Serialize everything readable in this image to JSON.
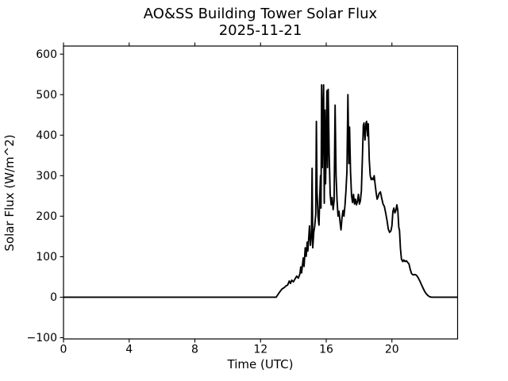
{
  "chart_data": {
    "type": "line",
    "title": "AO&SS Building Tower Solar Flux",
    "subtitle": "2025-11-21",
    "xlabel": "Time (UTC)",
    "ylabel": "Solar Flux (W/m^2)",
    "xlim": [
      0,
      24
    ],
    "ylim": [
      -103,
      620
    ],
    "grid": false,
    "legend": null,
    "line_color": "#000000",
    "background_color": "#ffffff",
    "xticks": {
      "values": [
        0,
        4,
        8,
        12,
        16,
        20
      ],
      "labels": [
        "0",
        "4",
        "8",
        "12",
        "16",
        "20"
      ]
    },
    "yticks": {
      "values": [
        -100,
        0,
        100,
        200,
        300,
        400,
        500,
        600
      ],
      "labels": [
        "−100",
        "0",
        "100",
        "200",
        "300",
        "400",
        "500",
        "600"
      ]
    },
    "series": [
      {
        "name": "solar-flux",
        "points": [
          [
            0.0,
            0
          ],
          [
            12.95,
            0
          ],
          [
            13.05,
            6
          ],
          [
            13.15,
            12
          ],
          [
            13.3,
            20
          ],
          [
            13.45,
            24
          ],
          [
            13.55,
            28
          ],
          [
            13.65,
            30
          ],
          [
            13.75,
            40
          ],
          [
            13.82,
            34
          ],
          [
            13.9,
            42
          ],
          [
            14.0,
            38
          ],
          [
            14.1,
            45
          ],
          [
            14.2,
            52
          ],
          [
            14.3,
            47
          ],
          [
            14.4,
            58
          ],
          [
            14.45,
            75
          ],
          [
            14.5,
            60
          ],
          [
            14.6,
            97
          ],
          [
            14.65,
            76
          ],
          [
            14.72,
            122
          ],
          [
            14.78,
            101
          ],
          [
            14.84,
            136
          ],
          [
            14.88,
            114
          ],
          [
            14.94,
            150
          ],
          [
            14.98,
            176
          ],
          [
            15.04,
            128
          ],
          [
            15.1,
            152
          ],
          [
            15.14,
            318
          ],
          [
            15.18,
            122
          ],
          [
            15.24,
            160
          ],
          [
            15.3,
            176
          ],
          [
            15.36,
            205
          ],
          [
            15.4,
            434
          ],
          [
            15.44,
            262
          ],
          [
            15.5,
            200
          ],
          [
            15.56,
            178
          ],
          [
            15.6,
            242
          ],
          [
            15.65,
            300
          ],
          [
            15.68,
            220
          ],
          [
            15.72,
            524
          ],
          [
            15.76,
            320
          ],
          [
            15.8,
            450
          ],
          [
            15.84,
            524
          ],
          [
            15.88,
            232
          ],
          [
            15.92,
            462
          ],
          [
            15.96,
            280
          ],
          [
            16.0,
            380
          ],
          [
            16.04,
            510
          ],
          [
            16.08,
            320
          ],
          [
            16.12,
            513
          ],
          [
            16.18,
            352
          ],
          [
            16.24,
            255
          ],
          [
            16.3,
            228
          ],
          [
            16.36,
            246
          ],
          [
            16.42,
            216
          ],
          [
            16.48,
            238
          ],
          [
            16.54,
            474
          ],
          [
            16.6,
            300
          ],
          [
            16.66,
            238
          ],
          [
            16.72,
            200
          ],
          [
            16.78,
            212
          ],
          [
            16.84,
            186
          ],
          [
            16.9,
            166
          ],
          [
            16.96,
            196
          ],
          [
            17.02,
            214
          ],
          [
            17.08,
            200
          ],
          [
            17.14,
            226
          ],
          [
            17.2,
            262
          ],
          [
            17.26,
            310
          ],
          [
            17.32,
            500
          ],
          [
            17.38,
            330
          ],
          [
            17.42,
            420
          ],
          [
            17.48,
            310
          ],
          [
            17.54,
            252
          ],
          [
            17.6,
            234
          ],
          [
            17.66,
            254
          ],
          [
            17.72,
            230
          ],
          [
            17.78,
            242
          ],
          [
            17.84,
            228
          ],
          [
            17.9,
            236
          ],
          [
            17.96,
            254
          ],
          [
            18.02,
            230
          ],
          [
            18.08,
            238
          ],
          [
            18.14,
            262
          ],
          [
            18.2,
            340
          ],
          [
            18.26,
            424
          ],
          [
            18.3,
            430
          ],
          [
            18.36,
            388
          ],
          [
            18.42,
            430
          ],
          [
            18.46,
            434
          ],
          [
            18.52,
            398
          ],
          [
            18.56,
            428
          ],
          [
            18.62,
            340
          ],
          [
            18.68,
            300
          ],
          [
            18.74,
            290
          ],
          [
            18.8,
            294
          ],
          [
            18.86,
            290
          ],
          [
            18.92,
            300
          ],
          [
            18.98,
            278
          ],
          [
            19.04,
            258
          ],
          [
            19.1,
            242
          ],
          [
            19.16,
            248
          ],
          [
            19.22,
            256
          ],
          [
            19.3,
            260
          ],
          [
            19.38,
            244
          ],
          [
            19.46,
            230
          ],
          [
            19.54,
            224
          ],
          [
            19.62,
            208
          ],
          [
            19.7,
            190
          ],
          [
            19.78,
            168
          ],
          [
            19.86,
            160
          ],
          [
            19.94,
            164
          ],
          [
            20.0,
            176
          ],
          [
            20.06,
            212
          ],
          [
            20.12,
            220
          ],
          [
            20.18,
            208
          ],
          [
            20.24,
            214
          ],
          [
            20.3,
            228
          ],
          [
            20.36,
            214
          ],
          [
            20.42,
            172
          ],
          [
            20.46,
            166
          ],
          [
            20.52,
            120
          ],
          [
            20.58,
            94
          ],
          [
            20.66,
            88
          ],
          [
            20.72,
            92
          ],
          [
            20.8,
            88
          ],
          [
            20.88,
            90
          ],
          [
            20.96,
            86
          ],
          [
            21.04,
            82
          ],
          [
            21.12,
            68
          ],
          [
            21.2,
            58
          ],
          [
            21.3,
            55
          ],
          [
            21.4,
            56
          ],
          [
            21.5,
            54
          ],
          [
            21.6,
            48
          ],
          [
            21.7,
            40
          ],
          [
            21.8,
            31
          ],
          [
            21.9,
            22
          ],
          [
            22.0,
            14
          ],
          [
            22.1,
            8
          ],
          [
            22.2,
            4
          ],
          [
            22.3,
            1
          ],
          [
            22.42,
            0
          ],
          [
            24.0,
            0
          ]
        ]
      }
    ]
  }
}
